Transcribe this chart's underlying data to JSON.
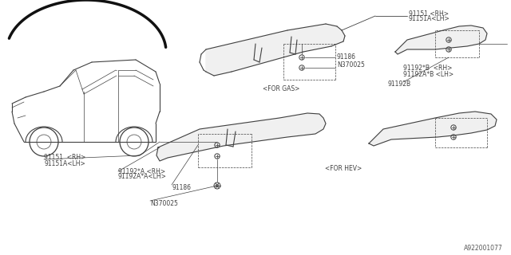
{
  "bg_color": "#ffffff",
  "line_color": "#404040",
  "part_number": "A922001077",
  "labels": {
    "for_gas": "<FOR GAS>",
    "for_hev": "<FOR HEV>",
    "p91151_rh": "91151 <RH>",
    "p91151a_lh": "91151A<LH>",
    "p91186_top": "91186",
    "pN370025_top": "N370025",
    "p91192b": "91192B",
    "p91192b_rh": "91192*B  <RH>",
    "p91192ab_lh": "91192A*B <LH>",
    "p91151_rh_b": "91151  <RH>",
    "p91151a_lh_b": "91151A<LH>",
    "p91192a_rh": "91192*A <RH>",
    "p91192aa_lh": "91192A*A<LH>",
    "p91186_bot": "91186",
    "pN370025_bot": "N370025"
  },
  "font_size": 5.5,
  "font_family": "DejaVu Sans"
}
